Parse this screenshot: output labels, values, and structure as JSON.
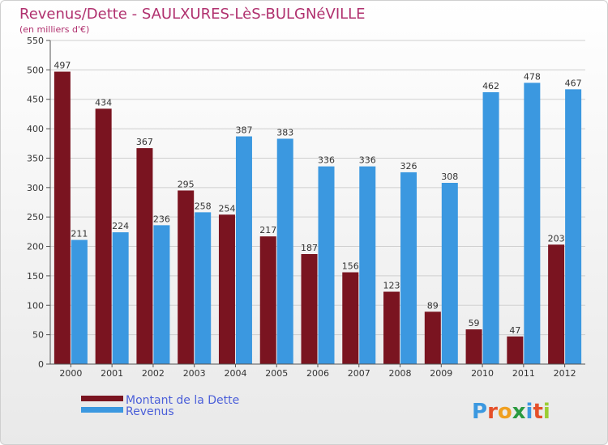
{
  "chart_data": {
    "type": "bar",
    "title": "Revenus/Dette - SAULXURES-LèS-BULGNéVILLE",
    "subtitle": "(en milliers d'€)",
    "categories": [
      "2000",
      "2001",
      "2002",
      "2003",
      "2004",
      "2005",
      "2006",
      "2007",
      "2008",
      "2009",
      "2010",
      "2011",
      "2012"
    ],
    "series": [
      {
        "name": "Montant de la Dette",
        "color": "#7a1420",
        "values": [
          497,
          434,
          367,
          295,
          254,
          217,
          187,
          156,
          123,
          89,
          59,
          47,
          203
        ]
      },
      {
        "name": "Revenus",
        "color": "#3b98e0",
        "values": [
          211,
          224,
          236,
          258,
          387,
          383,
          336,
          336,
          326,
          308,
          462,
          478,
          467
        ]
      }
    ],
    "yticks": [
      0,
      50,
      100,
      150,
      200,
      250,
      300,
      350,
      400,
      450,
      500,
      550
    ],
    "ylim": [
      0,
      550
    ],
    "grid": true,
    "legend": "bottom-left",
    "brand": "Proxiti"
  }
}
